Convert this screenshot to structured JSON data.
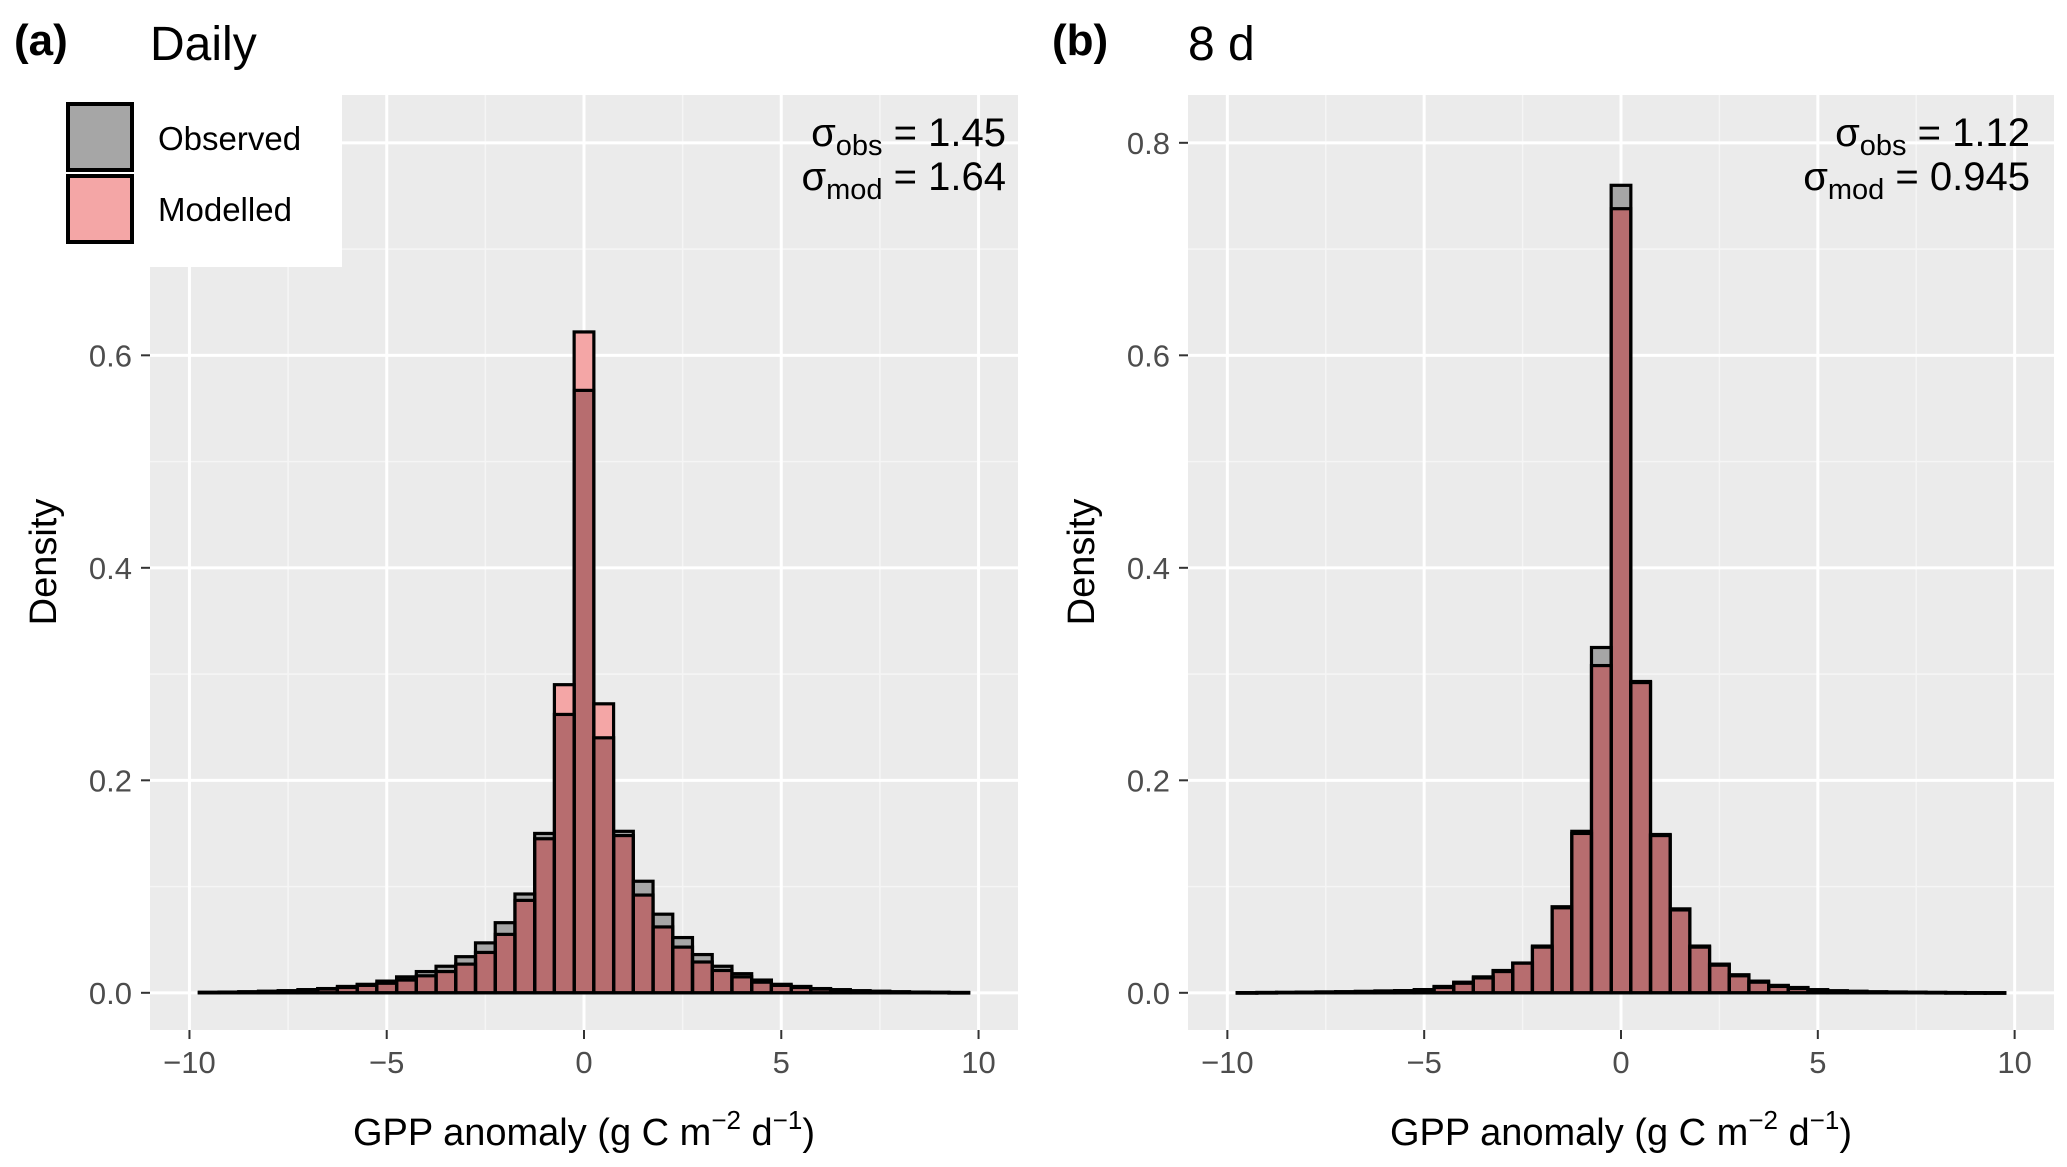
{
  "chart_data": [
    {
      "type": "bar",
      "panel_tag": "(a)",
      "title": "Daily",
      "xlabel": "GPP anomaly (g C m−2 d−1)",
      "xlabel_parts": {
        "main": "GPP anomaly (g C m",
        "exp1": "−2",
        "mid": " d",
        "exp2": "−1",
        "end": ")"
      },
      "ylabel": "Density",
      "xlim": [
        -11,
        11
      ],
      "ylim": [
        -0.035,
        0.845
      ],
      "xticks": [
        -10,
        -5,
        0,
        5,
        10
      ],
      "xtick_labels": [
        "−10",
        "−5",
        "0",
        "5",
        "10"
      ],
      "yticks": [
        0.0,
        0.2,
        0.4,
        0.6,
        0.8
      ],
      "ytick_labels": [
        "0.0",
        "0.2",
        "0.4",
        "0.6",
        ""
      ],
      "bin_width": 0.5,
      "x": [
        -9.5,
        -9.0,
        -8.5,
        -8.0,
        -7.5,
        -7.0,
        -6.5,
        -6.0,
        -5.5,
        -5.0,
        -4.5,
        -4.0,
        -3.5,
        -3.0,
        -2.5,
        -2.0,
        -1.5,
        -1.0,
        -0.5,
        0.0,
        0.5,
        1.0,
        1.5,
        2.0,
        2.5,
        3.0,
        3.5,
        4.0,
        4.5,
        5.0,
        5.5,
        6.0,
        6.5,
        7.0,
        7.5,
        8.0,
        8.5,
        9.0,
        9.5
      ],
      "series": [
        {
          "name": "Observed",
          "values": [
            0.0005,
            0.0007,
            0.001,
            0.0015,
            0.002,
            0.003,
            0.004,
            0.006,
            0.008,
            0.011,
            0.015,
            0.02,
            0.025,
            0.034,
            0.047,
            0.066,
            0.093,
            0.15,
            0.262,
            0.567,
            0.24,
            0.152,
            0.105,
            0.074,
            0.052,
            0.036,
            0.025,
            0.018,
            0.012,
            0.008,
            0.006,
            0.004,
            0.003,
            0.002,
            0.0015,
            0.001,
            0.0007,
            0.0005,
            0.0003
          ]
        },
        {
          "name": "Modelled",
          "values": [
            0.0004,
            0.0006,
            0.0009,
            0.0013,
            0.0018,
            0.0026,
            0.0036,
            0.005,
            0.007,
            0.009,
            0.012,
            0.016,
            0.02,
            0.027,
            0.038,
            0.055,
            0.087,
            0.145,
            0.29,
            0.622,
            0.272,
            0.148,
            0.092,
            0.062,
            0.043,
            0.029,
            0.021,
            0.015,
            0.01,
            0.007,
            0.005,
            0.0035,
            0.0025,
            0.0018,
            0.0013,
            0.0009,
            0.0006,
            0.0004,
            0.0003
          ]
        }
      ],
      "legend": {
        "position": "top-left",
        "entries": [
          "Observed",
          "Modelled"
        ]
      },
      "annotation": {
        "sigma": "σ",
        "eq": " = ",
        "obs_sub": "obs",
        "obs_value": "1.45",
        "mod_sub": "mod",
        "mod_value": "1.64"
      },
      "grid": true
    },
    {
      "type": "bar",
      "panel_tag": "(b)",
      "title": "8 d",
      "xlabel": "GPP anomaly (g C m−2 d−1)",
      "xlabel_parts": {
        "main": "GPP anomaly (g C m",
        "exp1": "−2",
        "mid": " d",
        "exp2": "−1",
        "end": ")"
      },
      "ylabel": "Density",
      "xlim": [
        -11,
        11
      ],
      "ylim": [
        -0.035,
        0.845
      ],
      "xticks": [
        -10,
        -5,
        0,
        5,
        10
      ],
      "xtick_labels": [
        "−10",
        "−5",
        "0",
        "5",
        "10"
      ],
      "yticks": [
        0.0,
        0.2,
        0.4,
        0.6,
        0.8
      ],
      "ytick_labels": [
        "0.0",
        "0.2",
        "0.4",
        "0.6",
        "0.8"
      ],
      "bin_width": 0.5,
      "x": [
        -9.5,
        -9.0,
        -8.5,
        -8.0,
        -7.5,
        -7.0,
        -6.5,
        -6.0,
        -5.5,
        -5.0,
        -4.5,
        -4.0,
        -3.5,
        -3.0,
        -2.5,
        -2.0,
        -1.5,
        -1.0,
        -0.5,
        0.0,
        0.5,
        1.0,
        1.5,
        2.0,
        2.5,
        3.0,
        3.5,
        4.0,
        4.5,
        5.0,
        5.5,
        6.0,
        6.5,
        7.0,
        7.5,
        8.0,
        8.5,
        9.0,
        9.5
      ],
      "series": [
        {
          "name": "Observed",
          "values": [
            0.0002,
            0.0003,
            0.0004,
            0.0006,
            0.0008,
            0.001,
            0.0013,
            0.0017,
            0.002,
            0.003,
            0.005,
            0.009,
            0.014,
            0.02,
            0.028,
            0.044,
            0.081,
            0.152,
            0.325,
            0.76,
            0.292,
            0.149,
            0.078,
            0.044,
            0.027,
            0.017,
            0.011,
            0.007,
            0.005,
            0.003,
            0.002,
            0.0015,
            0.001,
            0.0008,
            0.0006,
            0.0004,
            0.0003,
            0.0002,
            0.0001
          ]
        },
        {
          "name": "Modelled",
          "values": [
            0.0002,
            0.0003,
            0.0004,
            0.0006,
            0.0008,
            0.001,
            0.0013,
            0.0017,
            0.002,
            0.003,
            0.006,
            0.01,
            0.015,
            0.021,
            0.028,
            0.043,
            0.08,
            0.15,
            0.308,
            0.738,
            0.293,
            0.148,
            0.079,
            0.043,
            0.026,
            0.016,
            0.01,
            0.006,
            0.004,
            0.0025,
            0.0015,
            0.001,
            0.0008,
            0.0006,
            0.0004,
            0.0003,
            0.0002,
            0.0001,
            0.0001
          ]
        }
      ],
      "annotation": {
        "sigma": "σ",
        "eq": " = ",
        "obs_sub": "obs",
        "obs_value": "1.12",
        "mod_sub": "mod",
        "mod_value": "0.945"
      },
      "grid": true
    }
  ],
  "colors": {
    "panel_background": "#ebebeb",
    "grid_major": "#ffffff",
    "observed_fill": "#a6a6a6",
    "modelled_fill": "#f4a6a6",
    "overlap_fill": "#b76d6f",
    "bar_edge": "#000000"
  }
}
